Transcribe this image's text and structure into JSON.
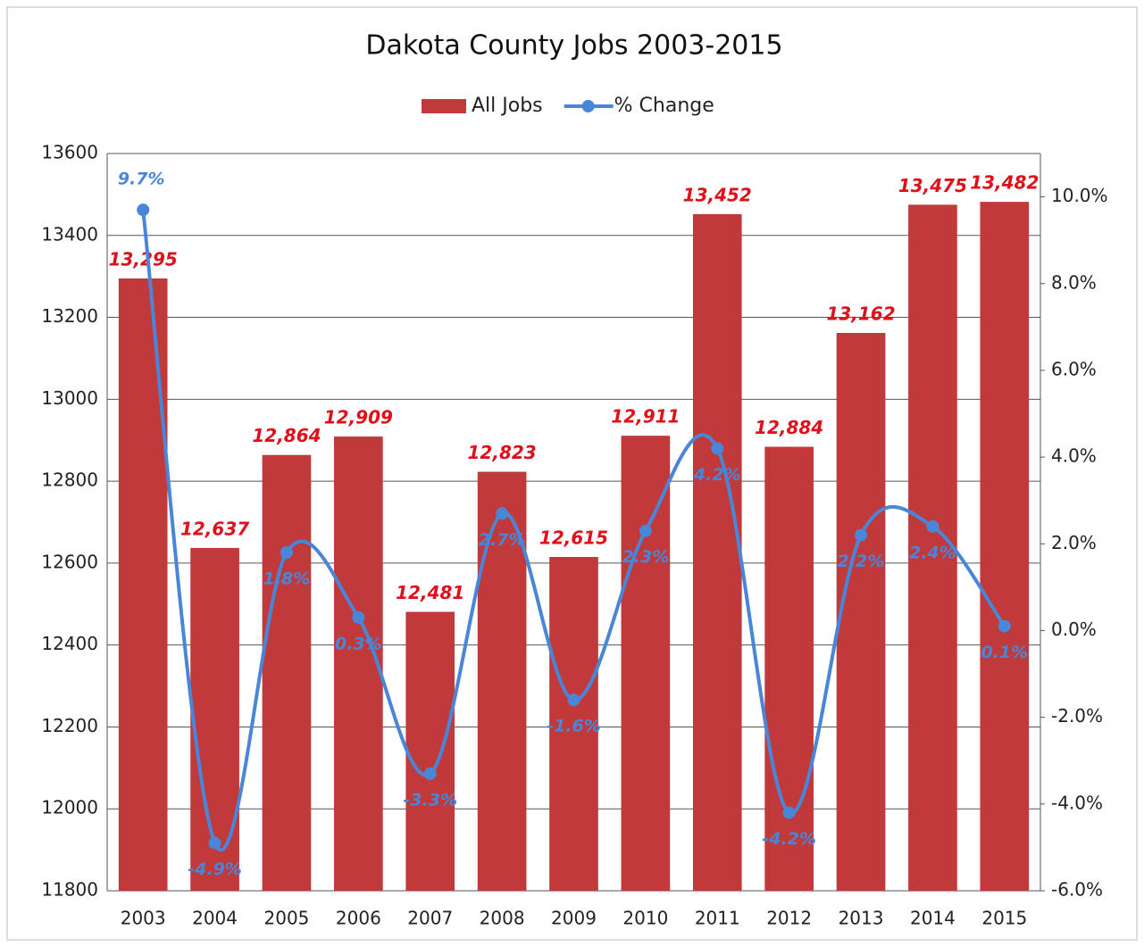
{
  "chart_data": {
    "type": "bar-line",
    "title": "Dakota County Jobs 2003-2015",
    "categories": [
      "2003",
      "2004",
      "2005",
      "2006",
      "2007",
      "2008",
      "2009",
      "2010",
      "2011",
      "2012",
      "2013",
      "2014",
      "2015"
    ],
    "series": [
      {
        "name": "All Jobs",
        "type": "bar",
        "color": "#c0393b",
        "values": [
          13295,
          12637,
          12864,
          12909,
          12481,
          12823,
          12615,
          12911,
          13452,
          12884,
          13162,
          13475,
          13482
        ],
        "value_labels": [
          "13,295",
          "12,637",
          "12,864",
          "12,909",
          "12,481",
          "12,823",
          "12,615",
          "12,911",
          "13,452",
          "12,884",
          "13,162",
          "13,475",
          "13,482"
        ]
      },
      {
        "name": "% Change",
        "type": "line",
        "axis": "y2",
        "color": "#4a86d8",
        "values": [
          9.7,
          -4.9,
          1.8,
          0.3,
          -3.3,
          2.7,
          -1.6,
          2.3,
          4.2,
          -4.2,
          2.2,
          2.4,
          0.1
        ],
        "value_labels": [
          "9.7%",
          "-4.9%",
          "1.8%",
          "0.3%",
          "-3.3%",
          "2.7%",
          "-1.6%",
          "2.3%",
          "4.2%",
          "-4.2%",
          "2.2%",
          "2.4%",
          "0.1%"
        ]
      }
    ],
    "ylim": [
      11800,
      13600
    ],
    "yticks": [
      11800,
      12000,
      12200,
      12400,
      12600,
      12800,
      13000,
      13200,
      13400,
      13600
    ],
    "y2lim": [
      -6,
      11
    ],
    "y2ticks": [
      {
        "value": -6,
        "label": "-6.0%"
      },
      {
        "value": -4,
        "label": "-4.0%"
      },
      {
        "value": -2,
        "label": "-2.0%"
      },
      {
        "value": 0,
        "label": "0.0%"
      },
      {
        "value": 2,
        "label": "2.0%"
      },
      {
        "value": 4,
        "label": "4.0%"
      },
      {
        "value": 6,
        "label": "6.0%"
      },
      {
        "value": 8,
        "label": "8.0%"
      },
      {
        "value": 10,
        "label": "10.0%"
      }
    ],
    "grid": true,
    "legend": "top"
  }
}
